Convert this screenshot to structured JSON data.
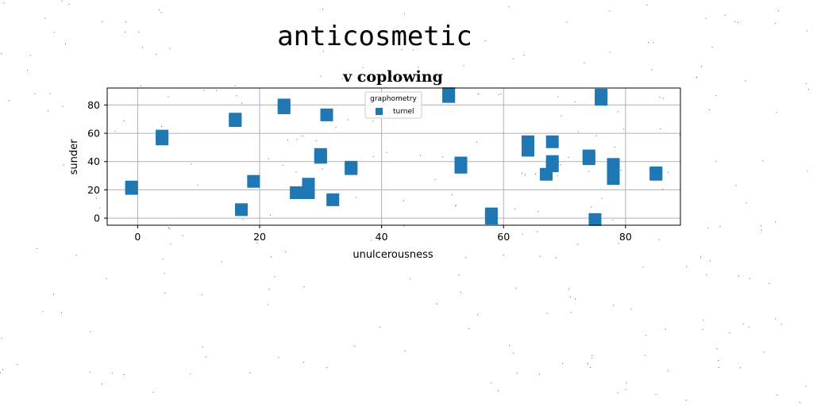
{
  "chart_data": {
    "type": "scatter",
    "suptitle": "anticosmetic",
    "title": "v coplowing",
    "xlabel": "unulcerousness",
    "ylabel": "sunder",
    "xlim": [
      -5,
      89
    ],
    "ylim": [
      -5,
      92
    ],
    "xticks": [
      0,
      20,
      40,
      60,
      80
    ],
    "yticks": [
      0,
      20,
      40,
      60,
      80
    ],
    "grid": true,
    "marker": "square",
    "color": "#1f77b4",
    "legend": {
      "title": "graphometry",
      "placement": "top-center"
    },
    "series": [
      {
        "name": "turnel",
        "points": [
          [
            -1,
            21
          ],
          [
            -1,
            22
          ],
          [
            4,
            56
          ],
          [
            4,
            58
          ],
          [
            16,
            69
          ],
          [
            16,
            70
          ],
          [
            17,
            6
          ],
          [
            19,
            26
          ],
          [
            24,
            78
          ],
          [
            24,
            80
          ],
          [
            26,
            18
          ],
          [
            28,
            18
          ],
          [
            28,
            20
          ],
          [
            28,
            24
          ],
          [
            30,
            43
          ],
          [
            30,
            45
          ],
          [
            31,
            73
          ],
          [
            32,
            13
          ],
          [
            35,
            35
          ],
          [
            35,
            36
          ],
          [
            51,
            86
          ],
          [
            51,
            88
          ],
          [
            53,
            36
          ],
          [
            53,
            39
          ],
          [
            58,
            0
          ],
          [
            58,
            3
          ],
          [
            64,
            48
          ],
          [
            64,
            51
          ],
          [
            64,
            54
          ],
          [
            67,
            31
          ],
          [
            68,
            37
          ],
          [
            68,
            40
          ],
          [
            68,
            54
          ],
          [
            74,
            42
          ],
          [
            74,
            44
          ],
          [
            75,
            -1
          ],
          [
            76,
            84
          ],
          [
            76,
            87
          ],
          [
            78,
            28
          ],
          [
            78,
            32
          ],
          [
            78,
            36
          ],
          [
            78,
            38
          ],
          [
            85,
            31
          ],
          [
            85,
            32
          ]
        ]
      }
    ]
  }
}
